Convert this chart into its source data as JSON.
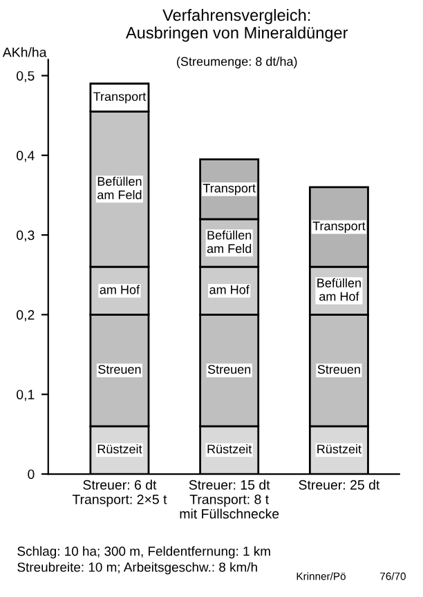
{
  "chart_data": {
    "type": "bar",
    "stacked": true,
    "title": "Verfahrensvergleich:\nAusbringen von Mineraldünger",
    "subtitle": "(Streumenge: 8 dt/ha)",
    "ylabel": "AKh/ha",
    "categories": [
      "Streuer: 6 dt\nTransport: 2×5 t",
      "Streuer: 15 dt\nTransport: 8 t\nmit Füllschnecke",
      "Streuer: 25 dt"
    ],
    "series": [
      {
        "name": "Rüstzeit",
        "color": "#d9d9d9",
        "values": [
          0.06,
          0.06,
          0.06
        ]
      },
      {
        "name": "Streuen",
        "color": "#bfbfbf",
        "values": [
          0.14,
          0.14,
          0.14
        ]
      },
      {
        "name": "am Hof",
        "color": "#cccccc",
        "values": [
          0.06,
          0.06,
          null
        ]
      },
      {
        "name": "Befüllen\nam Hof",
        "color": "#cccccc",
        "values": [
          null,
          null,
          0.06
        ]
      },
      {
        "name": "Befüllen\nam Feld",
        "color": "#c4c4c4",
        "values": [
          0.195,
          0.06,
          null
        ]
      },
      {
        "name": "Transport",
        "colors": [
          "#ffffff",
          "#b3b3b3",
          "#b3b3b3"
        ],
        "values": [
          0.035,
          0.075,
          0.1
        ]
      }
    ],
    "ylim": [
      0,
      0.52
    ],
    "yticks": [
      0,
      {
        "value": 0.1,
        "label": "0,1"
      },
      {
        "value": 0.2,
        "label": "0,2"
      },
      {
        "value": 0.3,
        "label": "0,3"
      },
      {
        "value": 0.4,
        "label": "0,4"
      },
      {
        "value": 0.5,
        "label": "0,5"
      }
    ],
    "grid": false,
    "legend": false,
    "annotations": [
      "Schlag: 10 ha; 300 m, Feldentfernung: 1 km\nStreubreite: 10 m; Arbeitsgeschw.: 8 km/h",
      "Krinner/Pö",
      "76/70"
    ]
  }
}
